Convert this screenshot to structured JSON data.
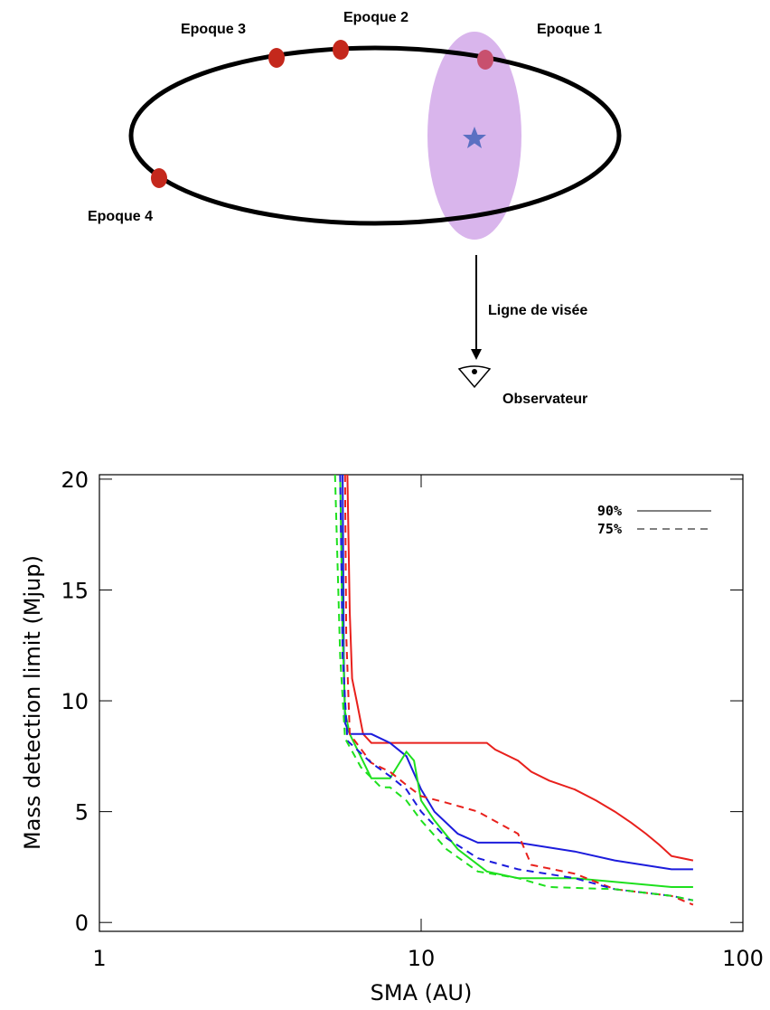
{
  "diagram": {
    "labels": [
      "Epoque 1",
      "Epoque 2",
      "Epoque 3",
      "Epoque 4",
      "Ligne de visée",
      "Observateur"
    ]
  },
  "chart_data": {
    "type": "line",
    "x_label": "SMA (AU)",
    "y_label": "Mass detection limit (Mjup)",
    "xscale": "log",
    "xlim": [
      1,
      100
    ],
    "xticks": [
      1,
      10,
      100
    ],
    "ylim": [
      -0.4,
      20.2
    ],
    "yticks": [
      0,
      5,
      10,
      15,
      20
    ],
    "legend": [
      {
        "label": "90%",
        "dashed": false
      },
      {
        "label": "75%",
        "dashed": true
      }
    ],
    "legend_position": "upper right",
    "series": [
      {
        "color": "#e8201c",
        "dashed": false,
        "x": [
          5.9,
          6.0,
          6.1,
          6.3,
          6.6,
          7,
          8,
          10,
          12,
          16,
          17,
          20,
          22,
          25,
          30,
          35,
          40,
          45,
          50,
          55,
          60,
          70
        ],
        "values": [
          20.2,
          14,
          11,
          10,
          8.5,
          8.1,
          8.1,
          8.1,
          8.1,
          8.1,
          7.8,
          7.3,
          6.8,
          6.4,
          6.0,
          5.5,
          5.0,
          4.5,
          4.0,
          3.5,
          3.0,
          2.8
        ]
      },
      {
        "color": "#1c1cdc",
        "dashed": false,
        "x": [
          5.7,
          5.75,
          5.8,
          6,
          7,
          8,
          9,
          10,
          11,
          13,
          15,
          20,
          30,
          40,
          60,
          70
        ],
        "values": [
          20.2,
          12,
          9,
          8.5,
          8.5,
          8.1,
          7.5,
          6,
          5,
          4,
          3.6,
          3.6,
          3.2,
          2.8,
          2.4,
          2.4
        ]
      },
      {
        "color": "#1ee01e",
        "dashed": false,
        "x": [
          5.6,
          5.7,
          5.8,
          6,
          7,
          8,
          9,
          9.5,
          10,
          11,
          13,
          16,
          20,
          30,
          60,
          70
        ],
        "values": [
          20.2,
          13,
          9.5,
          8.5,
          6.5,
          6.5,
          7.7,
          7.3,
          5.5,
          4.6,
          3.3,
          2.3,
          2.0,
          2.0,
          1.6,
          1.6
        ]
      },
      {
        "color": "#e8201c",
        "dashed": true,
        "x": [
          5.8,
          5.85,
          6,
          7,
          8,
          9,
          10,
          12,
          15,
          20,
          22,
          30,
          40,
          60,
          70
        ],
        "values": [
          20.2,
          13,
          8.5,
          7.2,
          6.8,
          6.2,
          5.7,
          5.4,
          5.0,
          4.0,
          2.6,
          2.2,
          1.5,
          1.2,
          0.8
        ]
      },
      {
        "color": "#1c1cdc",
        "dashed": true,
        "x": [
          5.6,
          5.7,
          5.9,
          7,
          8,
          9,
          10,
          12,
          15,
          20,
          30,
          40,
          60,
          70
        ],
        "values": [
          20.2,
          12,
          8.2,
          7.2,
          6.6,
          6,
          5,
          3.8,
          2.9,
          2.4,
          2.0,
          1.5,
          1.2,
          1.0
        ]
      },
      {
        "color": "#1ee01e",
        "dashed": true,
        "x": [
          5.4,
          5.6,
          5.8,
          6.5,
          7.5,
          8,
          9,
          10,
          12,
          15,
          20,
          25,
          40,
          60,
          70
        ],
        "values": [
          20.2,
          12,
          8.3,
          7,
          6.1,
          6.1,
          5.5,
          4.6,
          3.3,
          2.3,
          2.0,
          1.6,
          1.5,
          1.2,
          1.0
        ]
      }
    ]
  }
}
